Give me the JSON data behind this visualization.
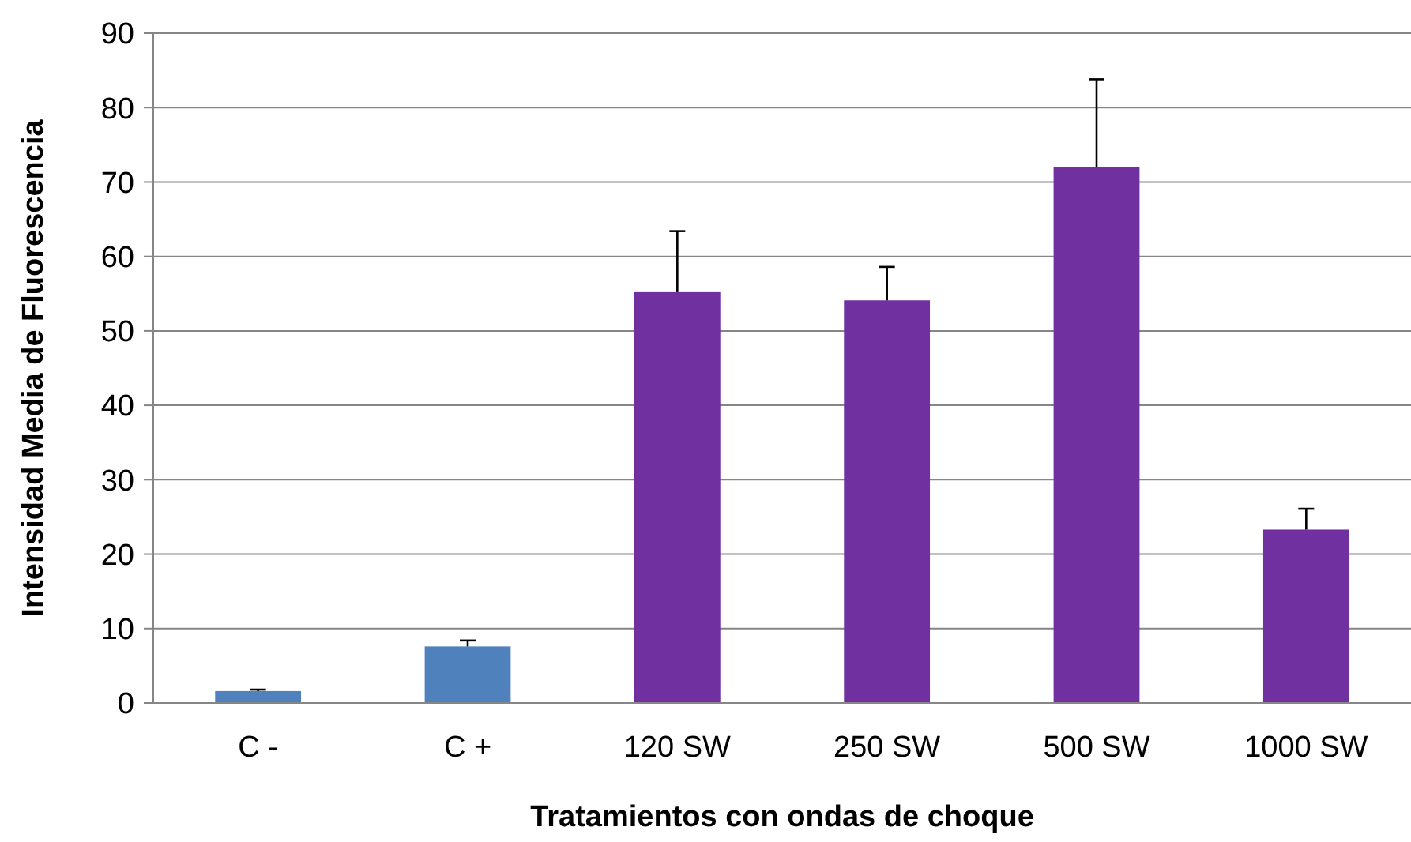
{
  "chart_data": {
    "type": "bar",
    "xlabel": "Tratamientos con ondas de choque",
    "ylabel": "Intensidad Media de Fluorescencia",
    "categories": [
      "C -",
      "C +",
      "120 SW",
      "250 SW",
      "500 SW",
      "1000 SW"
    ],
    "values": [
      1.6,
      7.6,
      55.2,
      54.1,
      72,
      23.3
    ],
    "colors": [
      "#4f81bd",
      "#4f81bd",
      "#7030a0",
      "#7030a0",
      "#7030a0",
      "#7030a0"
    ],
    "errors": [
      [
        1.6,
        1.8
      ],
      [
        7.6,
        8.4
      ],
      [
        55.2,
        63.4
      ],
      [
        54.1,
        58.6
      ],
      [
        72,
        83.8
      ],
      [
        23.3,
        26.1
      ]
    ],
    "ylim": [
      0,
      90
    ],
    "yticks": [
      0,
      10,
      20,
      30,
      40,
      50,
      60,
      70,
      80,
      90
    ],
    "grid": "y"
  }
}
